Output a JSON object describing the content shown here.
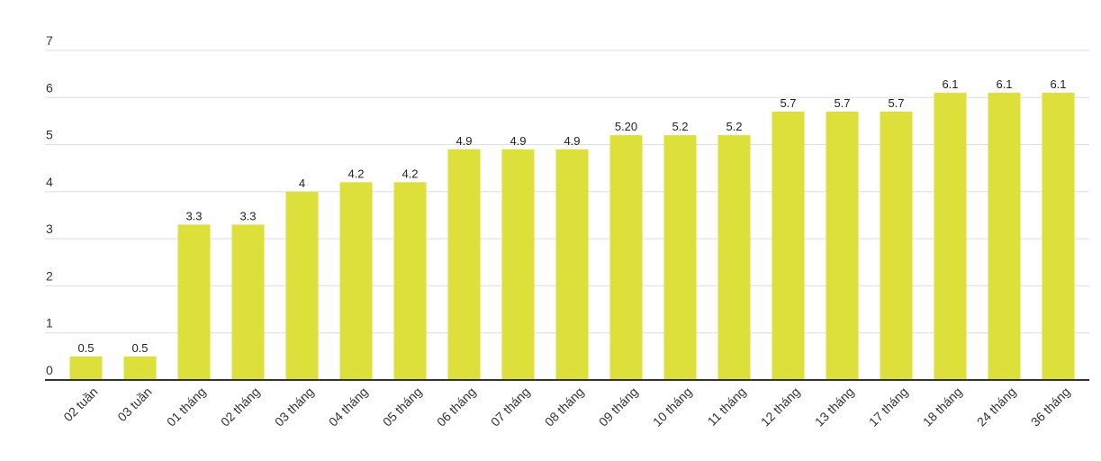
{
  "chart_data": {
    "type": "bar",
    "title": "",
    "xlabel": "",
    "ylabel": "",
    "categories": [
      "02 tuần",
      "03 tuần",
      "01 tháng",
      "02 tháng",
      "03 tháng",
      "04 tháng",
      "05 tháng",
      "06 tháng",
      "07 tháng",
      "08 tháng",
      "09 tháng",
      "10 tháng",
      "11 tháng",
      "12 tháng",
      "13 tháng",
      "17 tháng",
      "18 tháng",
      "24 tháng",
      "36 tháng"
    ],
    "values": [
      0.5,
      0.5,
      3.3,
      3.3,
      4,
      4.2,
      4.2,
      4.9,
      4.9,
      4.9,
      5.2,
      5.2,
      5.2,
      5.7,
      5.7,
      5.7,
      6.1,
      6.1,
      6.1
    ],
    "data_labels": [
      "0.5",
      "0.5",
      "3.3",
      "3.3",
      "4",
      "4.2",
      "4.2",
      "4.9",
      "4.9",
      "4.9",
      "5.20",
      "5.2",
      "5.2",
      "5.7",
      "5.7",
      "5.7",
      "6.1",
      "6.1",
      "6.1"
    ],
    "y_ticks": [
      "0",
      "1",
      "2",
      "3",
      "4",
      "5",
      "6",
      "7"
    ],
    "ylim": [
      0,
      7
    ],
    "grid": true,
    "legend": "none",
    "bar_color": "#dde03a",
    "grid_color": "#dddddd",
    "axis_color": "#333333"
  }
}
